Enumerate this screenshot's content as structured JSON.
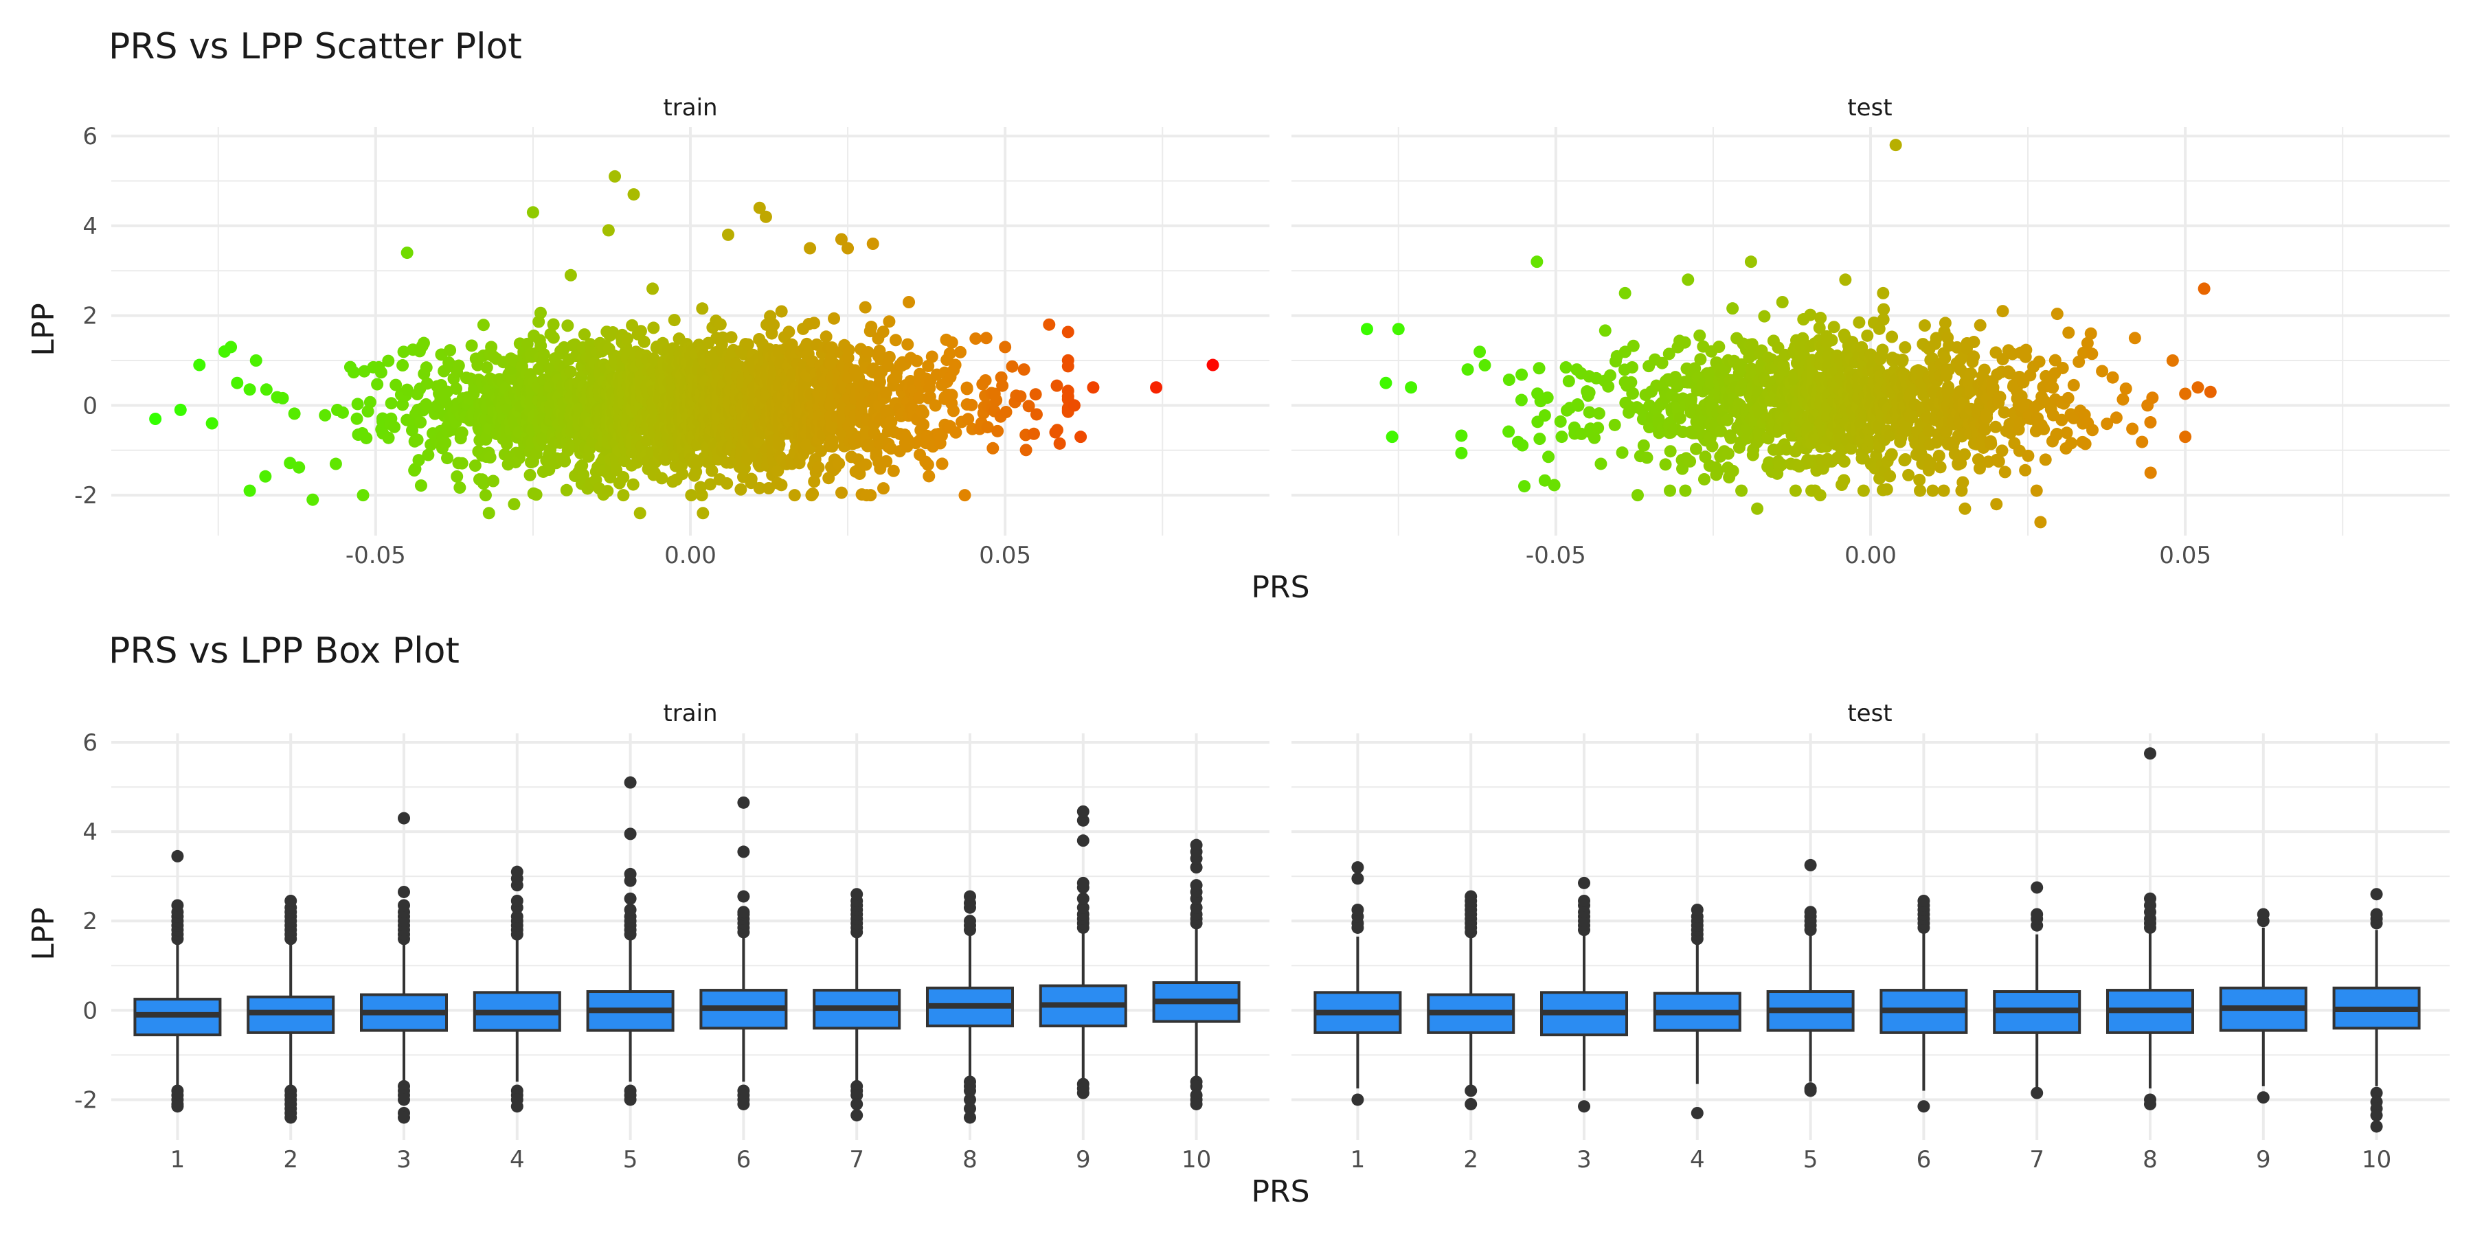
{
  "chart_data": [
    {
      "type": "scatter",
      "title": "PRS vs LPP Scatter Plot",
      "xlabel": "PRS",
      "ylabel": "LPP",
      "xlim": [
        -0.092,
        0.092
      ],
      "ylim": [
        -2.9,
        6.2
      ],
      "x_ticks": [
        -0.05,
        0.0,
        0.05
      ],
      "x_tick_labels": [
        "-0.05",
        "0.00",
        "0.05"
      ],
      "y_ticks": [
        -2,
        0,
        2,
        4,
        6
      ],
      "y_tick_labels": [
        "-2",
        "0",
        "2",
        "4",
        "6"
      ],
      "grid": true,
      "legend": "none",
      "color_scale": {
        "low": "#33ff00",
        "mid": "#aabb00",
        "high_mid": "#e08800",
        "high": "#ff0000",
        "range": [
          -0.085,
          0.085
        ]
      },
      "panels": [
        {
          "name": "train",
          "cloud": {
            "x_mean": 0.0,
            "x_sd": 0.021,
            "y_mean": 0.0,
            "y_sd": 0.75,
            "n": 2600,
            "x_range": [
              -0.07,
              0.06
            ],
            "y_range": [
              -2.0,
              2.3
            ]
          },
          "points": [
            [
              -0.085,
              -0.3
            ],
            [
              -0.081,
              -0.1
            ],
            [
              -0.078,
              0.9
            ],
            [
              -0.076,
              -0.4
            ],
            [
              -0.074,
              1.2
            ],
            [
              -0.073,
              1.3
            ],
            [
              -0.072,
              0.5
            ],
            [
              -0.07,
              -1.9
            ],
            [
              -0.069,
              1.0
            ],
            [
              -0.045,
              3.4
            ],
            [
              -0.025,
              4.3
            ],
            [
              -0.019,
              2.9
            ],
            [
              -0.013,
              3.9
            ],
            [
              -0.012,
              5.1
            ],
            [
              -0.009,
              4.7
            ],
            [
              -0.006,
              2.6
            ],
            [
              0.006,
              3.8
            ],
            [
              0.011,
              4.4
            ],
            [
              0.012,
              4.2
            ],
            [
              0.019,
              3.5
            ],
            [
              0.024,
              3.7
            ],
            [
              0.025,
              3.5
            ],
            [
              0.029,
              3.6
            ],
            [
              0.047,
              1.5
            ],
            [
              0.05,
              1.3
            ],
            [
              0.053,
              0.8
            ],
            [
              0.055,
              -0.2
            ],
            [
              0.057,
              1.8
            ],
            [
              0.058,
              -0.6
            ],
            [
              0.06,
              0.2
            ],
            [
              0.061,
              0.0
            ],
            [
              0.062,
              -0.7
            ],
            [
              0.064,
              0.4
            ],
            [
              0.074,
              0.4
            ],
            [
              0.083,
              0.9
            ],
            [
              -0.06,
              -2.1
            ],
            [
              -0.052,
              -2.0
            ],
            [
              -0.032,
              -2.4
            ],
            [
              -0.028,
              -2.2
            ],
            [
              -0.008,
              -2.4
            ],
            [
              0.002,
              -2.4
            ],
            [
              0.028,
              -2.0
            ],
            [
              0.04,
              -1.3
            ]
          ]
        },
        {
          "name": "test",
          "cloud": {
            "x_mean": -0.005,
            "x_sd": 0.019,
            "y_mean": 0.0,
            "y_sd": 0.72,
            "n": 1300,
            "x_range": [
              -0.065,
              0.05
            ],
            "y_range": [
              -1.9,
              2.2
            ]
          },
          "points": [
            [
              -0.08,
              1.7
            ],
            [
              -0.077,
              0.5
            ],
            [
              -0.076,
              -0.7
            ],
            [
              -0.075,
              1.7
            ],
            [
              -0.073,
              0.4
            ],
            [
              -0.064,
              0.8
            ],
            [
              -0.053,
              3.2
            ],
            [
              -0.039,
              2.5
            ],
            [
              -0.029,
              2.8
            ],
            [
              -0.019,
              3.2
            ],
            [
              -0.014,
              2.3
            ],
            [
              -0.004,
              2.8
            ],
            [
              0.004,
              5.8
            ],
            [
              0.002,
              2.5
            ],
            [
              0.021,
              2.1
            ],
            [
              0.035,
              1.6
            ],
            [
              0.042,
              1.5
            ],
            [
              0.048,
              1.0
            ],
            [
              0.05,
              -0.7
            ],
            [
              0.052,
              0.4
            ],
            [
              0.053,
              2.6
            ],
            [
              0.054,
              0.3
            ],
            [
              0.044,
              0.0
            ],
            [
              -0.055,
              -1.8
            ],
            [
              -0.037,
              -2.0
            ],
            [
              -0.018,
              -2.3
            ],
            [
              -0.008,
              -2.0
            ],
            [
              0.015,
              -2.3
            ],
            [
              0.02,
              -2.2
            ],
            [
              0.027,
              -2.6
            ]
          ]
        }
      ]
    },
    {
      "type": "box",
      "title": "PRS vs LPP Box Plot",
      "xlabel": "PRS",
      "ylabel": "LPP",
      "categories": [
        "1",
        "2",
        "3",
        "4",
        "5",
        "6",
        "7",
        "8",
        "9",
        "10"
      ],
      "ylim": [
        -2.9,
        6.2
      ],
      "y_ticks": [
        -2,
        0,
        2,
        4,
        6
      ],
      "y_tick_labels": [
        "-2",
        "0",
        "2",
        "4",
        "6"
      ],
      "grid": true,
      "box_color": "#2b8cf2",
      "outline_color": "#333333",
      "panels": [
        {
          "name": "train",
          "boxes": [
            {
              "category": "1",
              "whisker_low": -1.7,
              "q1": -0.55,
              "median": -0.1,
              "q3": 0.25,
              "whisker_high": 1.5,
              "outliers": [
                -1.8,
                -1.9,
                -2.0,
                -2.1,
                -2.15,
                1.6,
                1.7,
                1.8,
                1.9,
                2.0,
                2.1,
                2.2,
                2.35,
                3.45
              ]
            },
            {
              "category": "2",
              "whisker_low": -1.7,
              "q1": -0.5,
              "median": -0.05,
              "q3": 0.3,
              "whisker_high": 1.5,
              "outliers": [
                -1.8,
                -1.9,
                -2.0,
                -2.1,
                -2.2,
                -2.3,
                -2.4,
                1.6,
                1.7,
                1.8,
                1.9,
                2.0,
                2.1,
                2.2,
                2.3,
                2.45
              ]
            },
            {
              "category": "3",
              "whisker_low": -1.6,
              "q1": -0.45,
              "median": -0.05,
              "q3": 0.35,
              "whisker_high": 1.55,
              "outliers": [
                -1.7,
                -1.8,
                -1.9,
                -2.0,
                -2.3,
                -2.4,
                1.6,
                1.7,
                1.8,
                1.9,
                2.0,
                2.1,
                2.2,
                2.35,
                2.65,
                4.3
              ]
            },
            {
              "category": "4",
              "whisker_low": -1.6,
              "q1": -0.45,
              "median": -0.05,
              "q3": 0.4,
              "whisker_high": 1.6,
              "outliers": [
                -1.8,
                -1.9,
                -2.0,
                -2.15,
                1.7,
                1.8,
                1.9,
                2.0,
                2.1,
                2.3,
                2.45,
                2.8,
                2.95,
                3.1
              ]
            },
            {
              "category": "5",
              "whisker_low": -1.6,
              "q1": -0.45,
              "median": 0.0,
              "q3": 0.42,
              "whisker_high": 1.6,
              "outliers": [
                -1.8,
                -1.9,
                -2.0,
                1.7,
                1.8,
                1.9,
                2.0,
                2.1,
                2.25,
                2.5,
                2.9,
                3.05,
                3.95,
                5.1
              ]
            },
            {
              "category": "6",
              "whisker_low": -1.6,
              "q1": -0.4,
              "median": 0.05,
              "q3": 0.45,
              "whisker_high": 1.65,
              "outliers": [
                -1.8,
                -1.9,
                -2.0,
                -2.1,
                1.75,
                1.85,
                1.95,
                2.05,
                2.15,
                2.2,
                2.55,
                3.55,
                4.65
              ]
            },
            {
              "category": "7",
              "whisker_low": -1.6,
              "q1": -0.4,
              "median": 0.05,
              "q3": 0.45,
              "whisker_high": 1.65,
              "outliers": [
                -1.7,
                -1.8,
                -1.9,
                -2.1,
                -2.35,
                1.75,
                1.85,
                1.95,
                2.05,
                2.15,
                2.25,
                2.35,
                2.45,
                2.6
              ]
            },
            {
              "category": "8",
              "whisker_low": -1.55,
              "q1": -0.35,
              "median": 0.1,
              "q3": 0.5,
              "whisker_high": 1.7,
              "outliers": [
                -1.6,
                -1.7,
                -1.8,
                -2.0,
                -2.2,
                -2.4,
                1.8,
                1.9,
                2.0,
                2.3,
                2.4,
                2.55
              ]
            },
            {
              "category": "9",
              "whisker_low": -1.55,
              "q1": -0.35,
              "median": 0.12,
              "q3": 0.55,
              "whisker_high": 1.75,
              "outliers": [
                -1.65,
                -1.75,
                -1.85,
                1.85,
                1.95,
                2.05,
                2.15,
                2.3,
                2.5,
                2.75,
                2.85,
                3.8,
                4.25,
                4.45
              ]
            },
            {
              "category": "10",
              "whisker_low": -1.5,
              "q1": -0.25,
              "median": 0.2,
              "q3": 0.62,
              "whisker_high": 1.85,
              "outliers": [
                -1.6,
                -1.7,
                -1.9,
                -2.0,
                -2.1,
                1.95,
                2.05,
                2.15,
                2.3,
                2.5,
                2.65,
                2.8,
                3.2,
                3.4,
                3.55,
                3.7
              ]
            }
          ]
        },
        {
          "name": "test",
          "boxes": [
            {
              "category": "1",
              "whisker_low": -1.75,
              "q1": -0.5,
              "median": -0.05,
              "q3": 0.4,
              "whisker_high": 1.65,
              "outliers": [
                -2.0,
                1.85,
                1.95,
                2.1,
                2.25,
                2.95,
                3.2
              ]
            },
            {
              "category": "2",
              "whisker_low": -1.7,
              "q1": -0.5,
              "median": -0.05,
              "q3": 0.35,
              "whisker_high": 1.65,
              "outliers": [
                -1.8,
                -2.1,
                1.75,
                1.85,
                1.95,
                2.05,
                2.15,
                2.25,
                2.35,
                2.45,
                2.55
              ]
            },
            {
              "category": "3",
              "whisker_low": -1.8,
              "q1": -0.55,
              "median": -0.05,
              "q3": 0.4,
              "whisker_high": 1.7,
              "outliers": [
                -2.15,
                1.8,
                1.9,
                2.0,
                2.1,
                2.2,
                2.35,
                2.45,
                2.85
              ]
            },
            {
              "category": "4",
              "whisker_low": -1.65,
              "q1": -0.45,
              "median": -0.05,
              "q3": 0.38,
              "whisker_high": 1.5,
              "outliers": [
                -2.3,
                1.6,
                1.7,
                1.8,
                1.9,
                2.0,
                2.1,
                2.25
              ]
            },
            {
              "category": "5",
              "whisker_low": -1.6,
              "q1": -0.45,
              "median": 0.0,
              "q3": 0.42,
              "whisker_high": 1.7,
              "outliers": [
                -1.75,
                -1.8,
                1.8,
                1.9,
                2.0,
                2.1,
                2.2,
                3.25
              ]
            },
            {
              "category": "6",
              "whisker_low": -1.8,
              "q1": -0.5,
              "median": 0.0,
              "q3": 0.45,
              "whisker_high": 1.75,
              "outliers": [
                -2.15,
                1.85,
                1.95,
                2.05,
                2.15,
                2.25,
                2.35,
                2.45
              ]
            },
            {
              "category": "7",
              "whisker_low": -1.8,
              "q1": -0.5,
              "median": 0.0,
              "q3": 0.42,
              "whisker_high": 1.7,
              "outliers": [
                -1.85,
                1.9,
                2.05,
                2.15,
                2.75
              ]
            },
            {
              "category": "8",
              "whisker_low": -1.75,
              "q1": -0.5,
              "median": 0.0,
              "q3": 0.45,
              "whisker_high": 1.75,
              "outliers": [
                -2.0,
                -2.1,
                1.85,
                1.95,
                2.05,
                2.2,
                2.35,
                2.5,
                5.75
              ]
            },
            {
              "category": "9",
              "whisker_low": -1.7,
              "q1": -0.45,
              "median": 0.05,
              "q3": 0.5,
              "whisker_high": 1.85,
              "outliers": [
                -1.95,
                2.0,
                2.15
              ]
            },
            {
              "category": "10",
              "whisker_low": -1.7,
              "q1": -0.4,
              "median": 0.02,
              "q3": 0.5,
              "whisker_high": 1.8,
              "outliers": [
                -1.85,
                -2.05,
                -2.2,
                -2.35,
                -2.6,
                1.95,
                2.05,
                2.15,
                2.6
              ]
            }
          ]
        }
      ]
    }
  ]
}
